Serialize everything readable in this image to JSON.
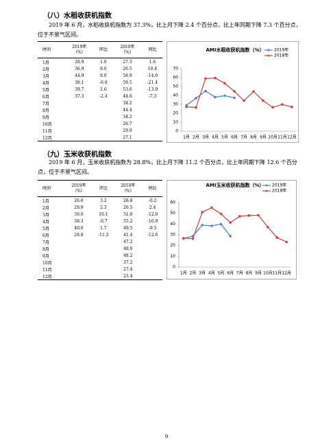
{
  "sections": [
    {
      "title": "（八）水稻收获机指数",
      "text": "2019 年 6 月，水稻收获机指数为 37.3%，比上月下降 2.4 个百分点，比上年同期下降 7.3 个百分点，位于不景气区间。",
      "table": {
        "headers": [
          [
            "时间"
          ],
          [
            "2019年",
            "（%）"
          ],
          [
            "环比"
          ],
          [
            "2018年",
            "（%）"
          ],
          [
            "同比"
          ]
        ],
        "rows": [
          [
            "1月",
            "28.9",
            "1.8",
            "27.3",
            "1.6"
          ],
          [
            "2月",
            "36.9",
            "8.0",
            "26.5",
            "10.4"
          ],
          [
            "3月",
            "44.9",
            "8.0",
            "58.9",
            "-14.0"
          ],
          [
            "4月",
            "38.1",
            "-6.8",
            "59.5",
            "-21.4"
          ],
          [
            "5月",
            "39.7",
            "1.6",
            "53.6",
            "-13.9"
          ],
          [
            "6月",
            "37.3",
            "-2.4",
            "44.6",
            "-7.3"
          ],
          [
            "7月",
            null,
            null,
            "34.2",
            null
          ],
          [
            "8月",
            null,
            null,
            "44.4",
            null
          ],
          [
            "9月",
            null,
            null,
            "34.2",
            null
          ],
          [
            "10月",
            null,
            null,
            "26.7",
            null
          ],
          [
            "11月",
            null,
            null,
            "29.9",
            null
          ],
          [
            "12月",
            null,
            null,
            "27.1",
            null
          ]
        ]
      },
      "chart_data": {
        "type": "line",
        "title": "AMI水稻收获机指数（%）",
        "categories": [
          "1月",
          "2月",
          "3月",
          "4月",
          "5月",
          "6月",
          "7月",
          "8月",
          "9月",
          "10月",
          "11月",
          "12月"
        ],
        "series": [
          {
            "name": "2019年",
            "color": "#4f81bd",
            "values": [
              28.9,
              36.9,
              44.9,
              38.1,
              39.7,
              37.3,
              null,
              null,
              null,
              null,
              null,
              null
            ]
          },
          {
            "name": "2018年",
            "color": "#c0504d",
            "values": [
              27.3,
              26.5,
              58.9,
              59.5,
              53.6,
              44.6,
              34.2,
              44.4,
              34.2,
              26.7,
              29.9,
              27.1
            ]
          }
        ],
        "ylim": [
          0,
          70
        ],
        "yticks": [
          0,
          10,
          20,
          30,
          40,
          50,
          60,
          70
        ],
        "grid": false,
        "legend": "top-right"
      }
    },
    {
      "title": "（九）玉米收获机指数",
      "text": "2019 年 6 月，玉米收获机指数为 28.8%，比上月下降 11.2 个百分点，比上年同期下降 12.6 个百分点，位于不景气区间。",
      "table": {
        "headers": [
          [
            "时间"
          ],
          [
            "2019年",
            "（%）"
          ],
          [
            "环比"
          ],
          [
            "2018年",
            "（%）"
          ],
          [
            "同比"
          ]
        ],
        "rows": [
          [
            "1月",
            "26.6",
            "3.2",
            "26.8",
            "-0.2"
          ],
          [
            "2月",
            "28.9",
            "2.3",
            "26.5",
            "2.4"
          ],
          [
            "3月",
            "39.0",
            "10.1",
            "51.0",
            "-12.0"
          ],
          [
            "4月",
            "38.3",
            "-0.7",
            "55.2",
            "-16.9"
          ],
          [
            "5月",
            "40.0",
            "1.7",
            "49.5",
            "-9.5"
          ],
          [
            "6月",
            "28.8",
            "-11.2",
            "41.4",
            "-12.6"
          ],
          [
            "7月",
            null,
            null,
            "47.2",
            null
          ],
          [
            "8月",
            null,
            null,
            "48.0",
            null
          ],
          [
            "9月",
            null,
            null,
            "48.2",
            null
          ],
          [
            "10月",
            null,
            null,
            "37.2",
            null
          ],
          [
            "11月",
            null,
            null,
            "27.4",
            null
          ],
          [
            "12月",
            null,
            null,
            "23.4",
            null
          ]
        ]
      },
      "chart_data": {
        "type": "line",
        "title": "AMI玉米收获机指数（%）",
        "categories": [
          "1月",
          "2月",
          "3月",
          "4月",
          "5月",
          "6月",
          "7月",
          "8月",
          "9月",
          "10月",
          "11月",
          "12月"
        ],
        "series": [
          {
            "name": "2019年",
            "color": "#4f81bd",
            "values": [
              26.6,
              28.9,
              39.0,
              38.3,
              40.0,
              28.8,
              null,
              null,
              null,
              null,
              null,
              null
            ]
          },
          {
            "name": "2018年",
            "color": "#c0504d",
            "values": [
              26.8,
              26.5,
              51.0,
              55.2,
              49.5,
              41.4,
              47.2,
              48.0,
              48.2,
              37.2,
              27.4,
              23.4
            ]
          }
        ],
        "ylim": [
          0,
          60
        ],
        "yticks": [
          0,
          10,
          20,
          30,
          40,
          50,
          60
        ],
        "grid": false,
        "legend": "top-right"
      }
    }
  ],
  "page_number": "9"
}
